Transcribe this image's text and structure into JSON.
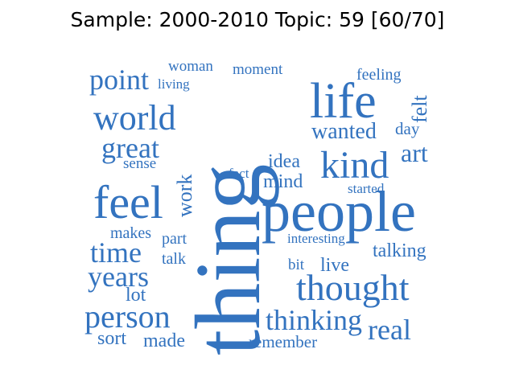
{
  "title": "Sample: 2000-2010 Topic: 59 [60/70]",
  "word_color": "#3373bf",
  "words": [
    "thing",
    "people",
    "life",
    "thought",
    "kind",
    "feel",
    "world",
    "point",
    "great",
    "time",
    "years",
    "person",
    "thinking",
    "real",
    "work",
    "wanted",
    "art",
    "felt",
    "idea",
    "mind",
    "talking",
    "live",
    "sort",
    "made",
    "remember",
    "lot",
    "makes",
    "part",
    "talk",
    "sense",
    "interesting",
    "started",
    "fact",
    "bit",
    "day",
    "feeling",
    "woman",
    "moment",
    "living"
  ]
}
